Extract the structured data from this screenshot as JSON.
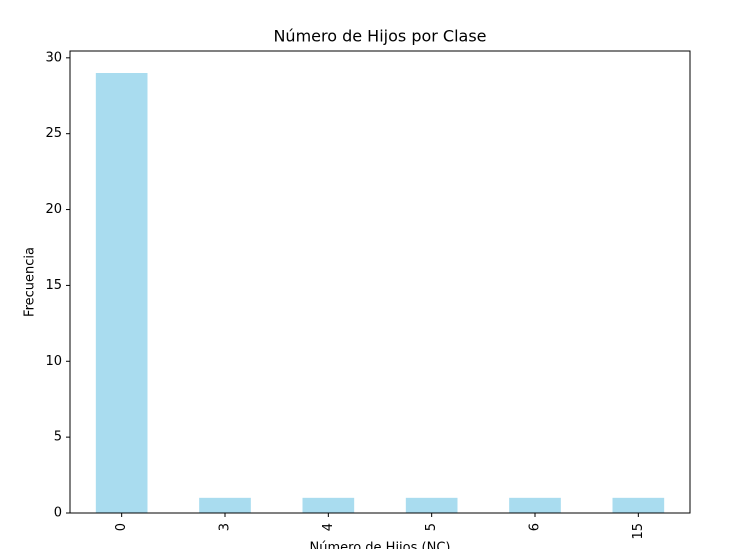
{
  "chart_data": {
    "type": "bar",
    "title": "Número de Hijos por Clase",
    "x_label": "Número de Hijos (NC)",
    "y_label": "Frecuencia",
    "categories": [
      "0",
      "3",
      "4",
      "5",
      "6",
      "15"
    ],
    "values": [
      29,
      1,
      1,
      1,
      1,
      1
    ],
    "color": "#a9dcef",
    "ylim": [
      0,
      30.45
    ],
    "yticks": [
      0,
      5,
      10,
      15,
      20,
      25,
      30
    ],
    "grid": false
  }
}
